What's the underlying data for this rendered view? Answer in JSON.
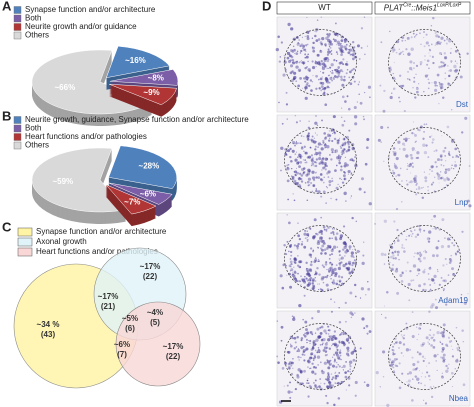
{
  "panel_labels": [
    "A",
    "B",
    "C",
    "D"
  ],
  "chart_data": [
    {
      "type": "pie",
      "categories": [
        "Synapse function and/or architecture",
        "Both",
        "Neurite growth and/or guidance",
        "Others"
      ],
      "values": [
        16,
        8,
        9,
        66
      ],
      "value_labels": [
        "~16%",
        "~8%",
        "~9%",
        "~66%"
      ],
      "colors": [
        "#4f81bd",
        "#7b5ea7",
        "#b23535",
        "#d9d9d9"
      ]
    },
    {
      "type": "pie",
      "categories": [
        "Neurite growth, guidance, Synapse function and/or architecture",
        "Both",
        "Heart functions and/or pathologies",
        "Others"
      ],
      "values": [
        28,
        6,
        7,
        59
      ],
      "value_labels": [
        "~28%",
        "~6%",
        "~7%",
        "~59%"
      ],
      "colors": [
        "#4f81bd",
        "#7b5ea7",
        "#b23535",
        "#d9d9d9"
      ]
    }
  ],
  "venn": {
    "legend": [
      {
        "label": "Synapse function and/or architecture",
        "color": "#fff4a3"
      },
      {
        "label": "Axonal growth",
        "color": "#e0f3f8"
      },
      {
        "label": "Heart functions and/or pathologies",
        "color": "#f9d7d7"
      }
    ],
    "regions": [
      {
        "percent": "~34 %",
        "count": "(43)"
      },
      {
        "percent": "~17%",
        "count": "(22)"
      },
      {
        "percent": "~17%",
        "count": "(21)"
      },
      {
        "percent": "~5%",
        "count": "(6)"
      },
      {
        "percent": "~4%",
        "count": "(5)"
      },
      {
        "percent": "~6%",
        "count": "(7)"
      },
      {
        "percent": "~17%",
        "count": "(22)"
      }
    ]
  },
  "micrographs": {
    "columns": [
      "WT",
      {
        "base": "PLAT",
        "sup1": "Cre",
        "mid": "::Meis1",
        "sup2": "LoxP/LoxP"
      }
    ],
    "rows": [
      "Dst",
      "Lnp",
      "Adam19",
      "Nbea"
    ]
  }
}
